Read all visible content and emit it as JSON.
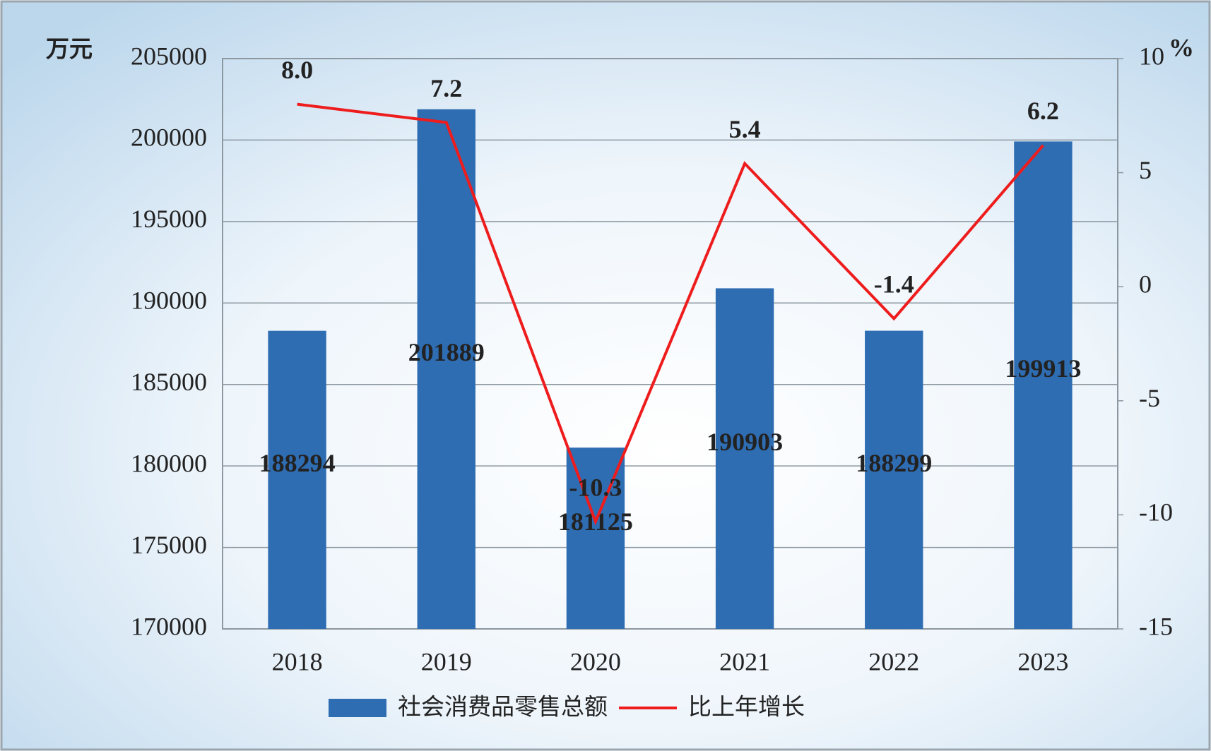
{
  "chart_data": {
    "type": "bar-line",
    "y_label": "万元",
    "y2_label": "%",
    "categories": [
      "2018",
      "2019",
      "2020",
      "2021",
      "2022",
      "2023"
    ],
    "series": [
      {
        "name": "社会消费品零售总额",
        "type": "bar",
        "color": "#2f6db3",
        "axis": "y",
        "values": [
          188294,
          201889,
          181125,
          190903,
          188299,
          199913
        ]
      },
      {
        "name": "比上年增长",
        "type": "line",
        "color": "#ee1c1c",
        "axis": "y2",
        "values": [
          8.0,
          7.2,
          -10.3,
          5.4,
          -1.4,
          6.2
        ],
        "value_labels": [
          "8.0",
          "7.2",
          "-10.3",
          "5.4",
          "-1.4",
          "6.2"
        ]
      }
    ],
    "ylim": [
      170000,
      205000
    ],
    "yticks": [
      170000,
      175000,
      180000,
      185000,
      190000,
      195000,
      200000,
      205000
    ],
    "y2lim": [
      -15,
      10
    ],
    "y2ticks": [
      -15,
      -10,
      -5,
      0,
      5,
      10
    ],
    "grid": true,
    "legend": "bottom"
  }
}
